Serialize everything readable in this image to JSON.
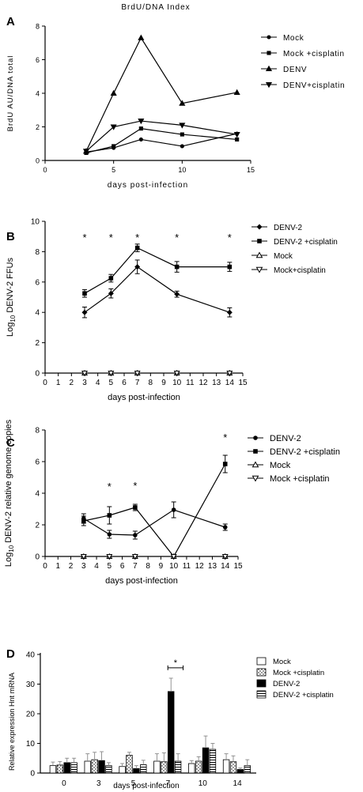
{
  "chart_data": [
    {
      "panel": "A",
      "type": "line",
      "title": "BrdU/DNA Index",
      "xlabel": "days post-infection",
      "ylabel": "BrdU AU/DNA total",
      "xlim": [
        0,
        15
      ],
      "ylim": [
        0,
        8
      ],
      "xticks": [
        0,
        5,
        10,
        15
      ],
      "yticks": [
        0,
        2,
        4,
        6,
        8
      ],
      "legend_position": "right",
      "x": [
        3,
        5,
        7,
        10,
        14
      ],
      "series": [
        {
          "name": "Mock",
          "marker": "circle",
          "values": [
            0.5,
            0.75,
            1.25,
            0.85,
            1.6
          ]
        },
        {
          "name": "Mock +cisplatin",
          "marker": "square",
          "values": [
            0.45,
            0.85,
            1.9,
            1.55,
            1.25
          ]
        },
        {
          "name": "DENV",
          "marker": "triangle-up",
          "values": [
            0.55,
            4.0,
            7.3,
            3.4,
            4.05
          ]
        },
        {
          "name": "DENV+cisplatin",
          "marker": "triangle-down",
          "values": [
            0.55,
            2.0,
            2.35,
            2.1,
            1.55
          ]
        }
      ]
    },
    {
      "panel": "B",
      "type": "line",
      "title": "",
      "xlabel": "days post-infection",
      "ylabel_prefix": "Log",
      "ylabel_sub": "10",
      "ylabel_rest": " DENV-2 FFUs",
      "xlim": [
        0,
        15
      ],
      "ylim": [
        0,
        10
      ],
      "xticks": [
        0,
        1,
        2,
        3,
        4,
        5,
        6,
        7,
        8,
        9,
        10,
        11,
        12,
        13,
        14,
        15
      ],
      "yticks": [
        0,
        2,
        4,
        6,
        8,
        10
      ],
      "legend_position": "right",
      "x": [
        3,
        5,
        7,
        10,
        14
      ],
      "significance": {
        "x": [
          3,
          5,
          7,
          10,
          14
        ],
        "y": 9.0,
        "label": "*"
      },
      "series": [
        {
          "name": "DENV-2",
          "marker": "diamond",
          "values": [
            4.0,
            5.25,
            7.0,
            5.2,
            4.0
          ],
          "errors": [
            0.35,
            0.3,
            0.45,
            0.2,
            0.3
          ]
        },
        {
          "name": "DENV-2 +cisplatin",
          "marker": "square",
          "values": [
            5.25,
            6.25,
            8.25,
            7.0,
            7.0
          ],
          "errors": [
            0.25,
            0.25,
            0.25,
            0.35,
            0.3
          ]
        },
        {
          "name": "Mock",
          "marker": "open-triangle-up",
          "values": [
            0,
            0,
            0,
            0,
            0
          ]
        },
        {
          "name": "Mock+cisplatin",
          "marker": "open-triangle-down",
          "values": [
            0,
            0,
            0,
            0,
            0
          ]
        }
      ]
    },
    {
      "panel": "C",
      "type": "line",
      "title": "",
      "xlabel": "days post-infection",
      "ylabel_prefix": "Log",
      "ylabel_sub": "10",
      "ylabel_rest": " DENV-2 relative genome copies",
      "xlim": [
        0,
        15
      ],
      "ylim": [
        0,
        8
      ],
      "xticks": [
        0,
        1,
        2,
        3,
        4,
        5,
        6,
        7,
        8,
        9,
        10,
        11,
        12,
        13,
        14,
        15
      ],
      "yticks": [
        0,
        2,
        4,
        6,
        8
      ],
      "legend_position": "right",
      "x": [
        3,
        5,
        7,
        10,
        14
      ],
      "significance": {
        "x": [
          5,
          7,
          14
        ],
        "y": [
          4.5,
          4.55,
          7.6
        ],
        "label": "*"
      },
      "series": [
        {
          "name": "DENV-2",
          "marker": "circle",
          "values": [
            2.4,
            1.4,
            1.35,
            2.95,
            1.85
          ],
          "errors": [
            0.3,
            0.25,
            0.25,
            0.5,
            0.2
          ]
        },
        {
          "name": "DENV-2 +cisplatin",
          "marker": "square",
          "values": [
            2.25,
            2.6,
            3.1,
            0,
            5.85
          ],
          "errors": [
            0.3,
            0.55,
            0.2,
            0,
            0.55
          ]
        },
        {
          "name": "Mock",
          "marker": "open-triangle-up",
          "values": [
            0,
            0,
            0,
            0,
            0
          ]
        },
        {
          "name": "Mock +cisplatin",
          "marker": "open-triangle-down",
          "values": [
            0,
            0,
            0,
            0,
            0
          ]
        }
      ]
    },
    {
      "panel": "D",
      "type": "bar",
      "title": "",
      "xlabel": "days post-infection",
      "ylabel": "Relative expression Hnt mRNA",
      "ylim": [
        0,
        40
      ],
      "yticks": [
        0,
        10,
        20,
        30,
        40
      ],
      "legend_position": "right",
      "categories": [
        "0",
        "3",
        "5",
        "7",
        "10",
        "14"
      ],
      "significance": {
        "category": "7",
        "y": 38.5,
        "label": "*"
      },
      "series": [
        {
          "name": "Mock",
          "pattern": "white",
          "values": [
            2.5,
            4.0,
            2.2,
            4.0,
            3.2,
            4.5
          ],
          "errors": [
            1.2,
            2.5,
            1.0,
            2.5,
            1.0,
            2.0
          ]
        },
        {
          "name": "Mock +cisplatin",
          "pattern": "dotted",
          "values": [
            2.7,
            4.5,
            6.0,
            3.8,
            4.0,
            3.8
          ],
          "errors": [
            1.2,
            2.5,
            1.0,
            3.0,
            1.5,
            2.0
          ]
        },
        {
          "name": "DENV-2",
          "pattern": "black",
          "values": [
            3.5,
            4.2,
            1.5,
            27.5,
            8.5,
            1.2
          ],
          "errors": [
            1.5,
            3.0,
            1.0,
            4.5,
            4.0,
            0.5
          ]
        },
        {
          "name": "DENV-2 +cisplatin",
          "pattern": "stripes",
          "values": [
            3.5,
            2.5,
            2.8,
            4.0,
            8.0,
            2.5
          ],
          "errors": [
            1.5,
            1.0,
            1.5,
            2.5,
            2.0,
            2.0
          ]
        }
      ]
    }
  ],
  "panel_labels": [
    "A",
    "B",
    "C",
    "D"
  ]
}
